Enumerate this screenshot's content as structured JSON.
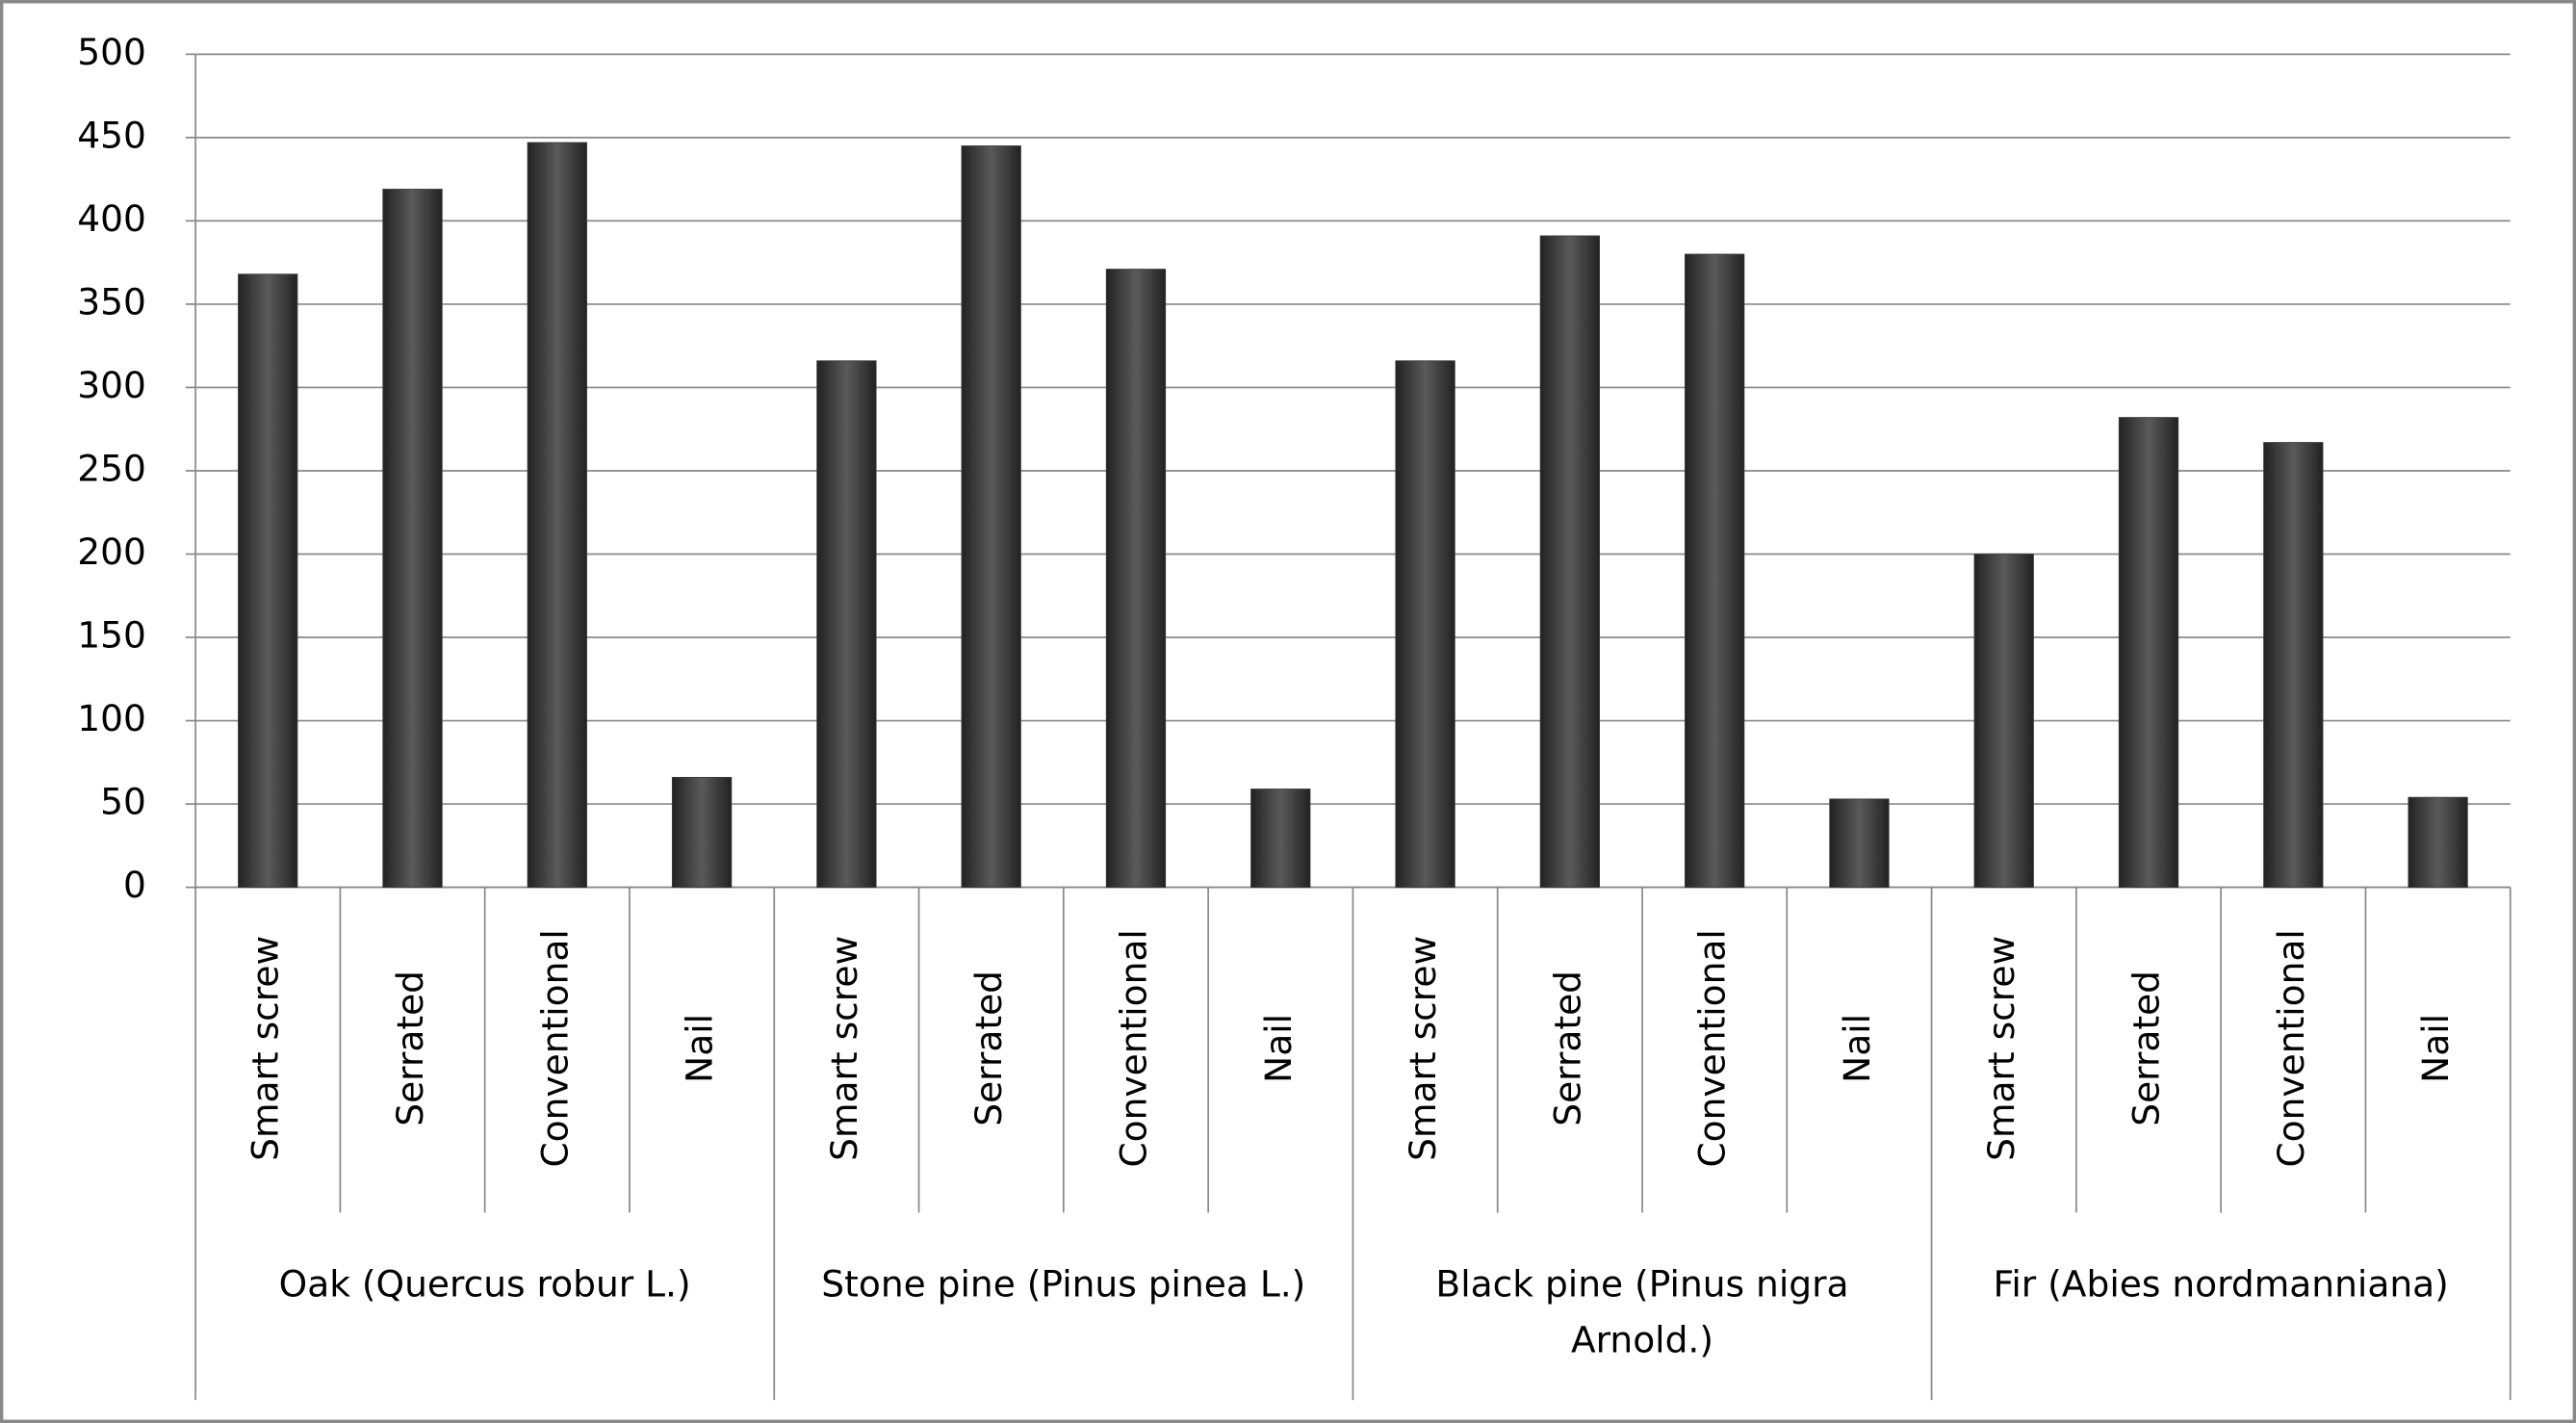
{
  "chart_data": {
    "type": "bar",
    "groups": [
      "Oak (Quercus robur L.)",
      "Stone pine (Pinus pinea L.)",
      "Black pine (Pinus nigra Arnold.)",
      "Fir (Abies nordmanniana)"
    ],
    "categories": [
      "Smart screw",
      "Serrated",
      "Conventional",
      "Nail",
      "Smart screw",
      "Serrated",
      "Conventional",
      "Nail",
      "Smart screw",
      "Serrated",
      "Conventional",
      "Nail",
      "Smart screw",
      "Serrated",
      "Conventional",
      "Nail"
    ],
    "values": [
      368,
      419,
      447,
      66,
      316,
      445,
      371,
      59,
      316,
      391,
      380,
      53,
      200,
      282,
      267,
      54
    ],
    "color": "#3a3a3a",
    "ylim": [
      0,
      500
    ],
    "yticks": [
      0,
      50,
      100,
      150,
      200,
      250,
      300,
      350,
      400,
      450,
      500
    ],
    "grid": true
  }
}
